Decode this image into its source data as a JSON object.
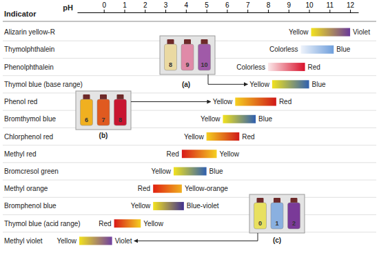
{
  "chart_data": {
    "type": "range",
    "row_header": "Indicator",
    "xlabel": "pH",
    "xlim": [
      -1.3,
      12.4
    ],
    "xticks": [
      0,
      1,
      2,
      3,
      4,
      5,
      6,
      7,
      8,
      9,
      10,
      11,
      12
    ],
    "categories": [
      "Alizarin yellow-R",
      "Thymolphthalein",
      "Phenolphthalein",
      "Thymol blue (base range)",
      "Phenol red",
      "Bromthymol blue",
      "Chlorphenol red",
      "Methyl red",
      "Bromcresol green",
      "Methyl orange",
      "Bromphenol blue",
      "Thymol blue (acid range)",
      "Methyl violet"
    ],
    "starts": [
      10.1,
      9.6,
      8.0,
      8.2,
      6.4,
      5.8,
      5.0,
      3.8,
      3.4,
      2.4,
      2.4,
      0.5,
      -1.2
    ],
    "ends": [
      12.0,
      11.2,
      9.8,
      10.0,
      8.4,
      7.4,
      6.6,
      5.5,
      5.0,
      3.8,
      3.9,
      1.8,
      0.4
    ],
    "start_labels": [
      "Yellow",
      "Colorless",
      "Colorless",
      "Yellow",
      "Yellow",
      "Yellow",
      "Yellow",
      "Red",
      "Yellow",
      "Red",
      "Yellow",
      "Red",
      "Yellow"
    ],
    "end_labels": [
      "Violet",
      "Blue",
      "Red",
      "Blue",
      "Red",
      "Blue",
      "Red",
      "Yellow",
      "Blue",
      "Yellow-orange",
      "Blue-violet",
      "Yellow",
      "Violet"
    ],
    "colors": [
      [
        "#f2e21e",
        "#6a3a9a"
      ],
      [
        "#eef3fb",
        "#6f9fdc"
      ],
      [
        "#fbe8ea",
        "#d8102a"
      ],
      [
        "#f2e21e",
        "#3060b0"
      ],
      [
        "#f5d020",
        "#d01818"
      ],
      [
        "#f2e21e",
        "#2f5fb0"
      ],
      [
        "#f5d020",
        "#d01818"
      ],
      [
        "#d81818",
        "#f5d020"
      ],
      [
        "#f2e21e",
        "#2f5fb0"
      ],
      [
        "#e02010",
        "#f0b020"
      ],
      [
        "#f2e21e",
        "#403090"
      ],
      [
        "#d81818",
        "#f5d020"
      ],
      [
        "#f2e21e",
        "#7040a0"
      ]
    ],
    "insets": [
      {
        "label": "(a)",
        "bottles": [
          8,
          9,
          10
        ],
        "colors": [
          "#ead9a2",
          "#e08aa8",
          "#a05aa8"
        ]
      },
      {
        "label": "(b)",
        "bottles": [
          6,
          7,
          8
        ],
        "colors": [
          "#f0b020",
          "#e05a20",
          "#c81530"
        ]
      },
      {
        "label": "(c)",
        "bottles": [
          0,
          1,
          2
        ],
        "colors": [
          "#e8e060",
          "#8ab0e0",
          "#7a3a98"
        ]
      }
    ]
  }
}
